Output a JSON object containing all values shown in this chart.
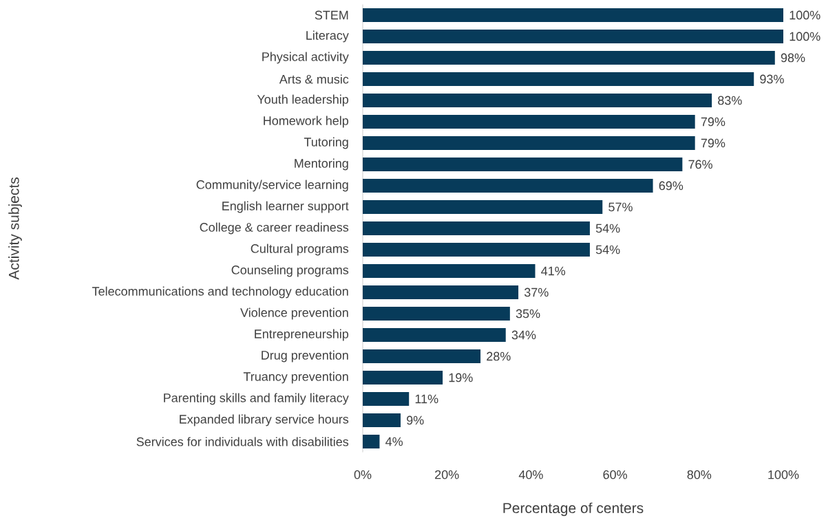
{
  "chart_data": {
    "type": "bar",
    "orientation": "horizontal",
    "xlabel": "Percentage of centers",
    "ylabel": "Activity subjects",
    "categories": [
      "STEM",
      "Literacy",
      "Physical activity",
      "Arts & music",
      "Youth leadership",
      "Homework help",
      "Tutoring",
      "Mentoring",
      "Community/service learning",
      "English learner support",
      "College & career readiness",
      "Cultural programs",
      "Counseling programs",
      "Telecommunications and technology education",
      "Violence prevention",
      "Entrepreneurship",
      "Drug prevention",
      "Truancy prevention",
      "Parenting skills and family literacy",
      "Expanded library service hours",
      "Services for individuals with disabilities"
    ],
    "values": [
      100,
      100,
      98,
      93,
      83,
      79,
      79,
      76,
      69,
      57,
      54,
      54,
      41,
      37,
      35,
      34,
      28,
      19,
      11,
      9,
      4
    ],
    "value_labels": [
      "100%",
      "100%",
      "98%",
      "93%",
      "83%",
      "79%",
      "79%",
      "76%",
      "69%",
      "57%",
      "54%",
      "54%",
      "41%",
      "37%",
      "35%",
      "34%",
      "28%",
      "19%",
      "11%",
      "9%",
      "4%"
    ],
    "color": "#073b5a",
    "xlim": [
      0,
      100
    ],
    "xticks": [
      {
        "value": 0,
        "label": "0%"
      },
      {
        "value": 20,
        "label": "20%"
      },
      {
        "value": 40,
        "label": "40%"
      },
      {
        "value": 60,
        "label": "60%"
      },
      {
        "value": 80,
        "label": "80%"
      },
      {
        "value": 100,
        "label": "100%"
      }
    ]
  }
}
